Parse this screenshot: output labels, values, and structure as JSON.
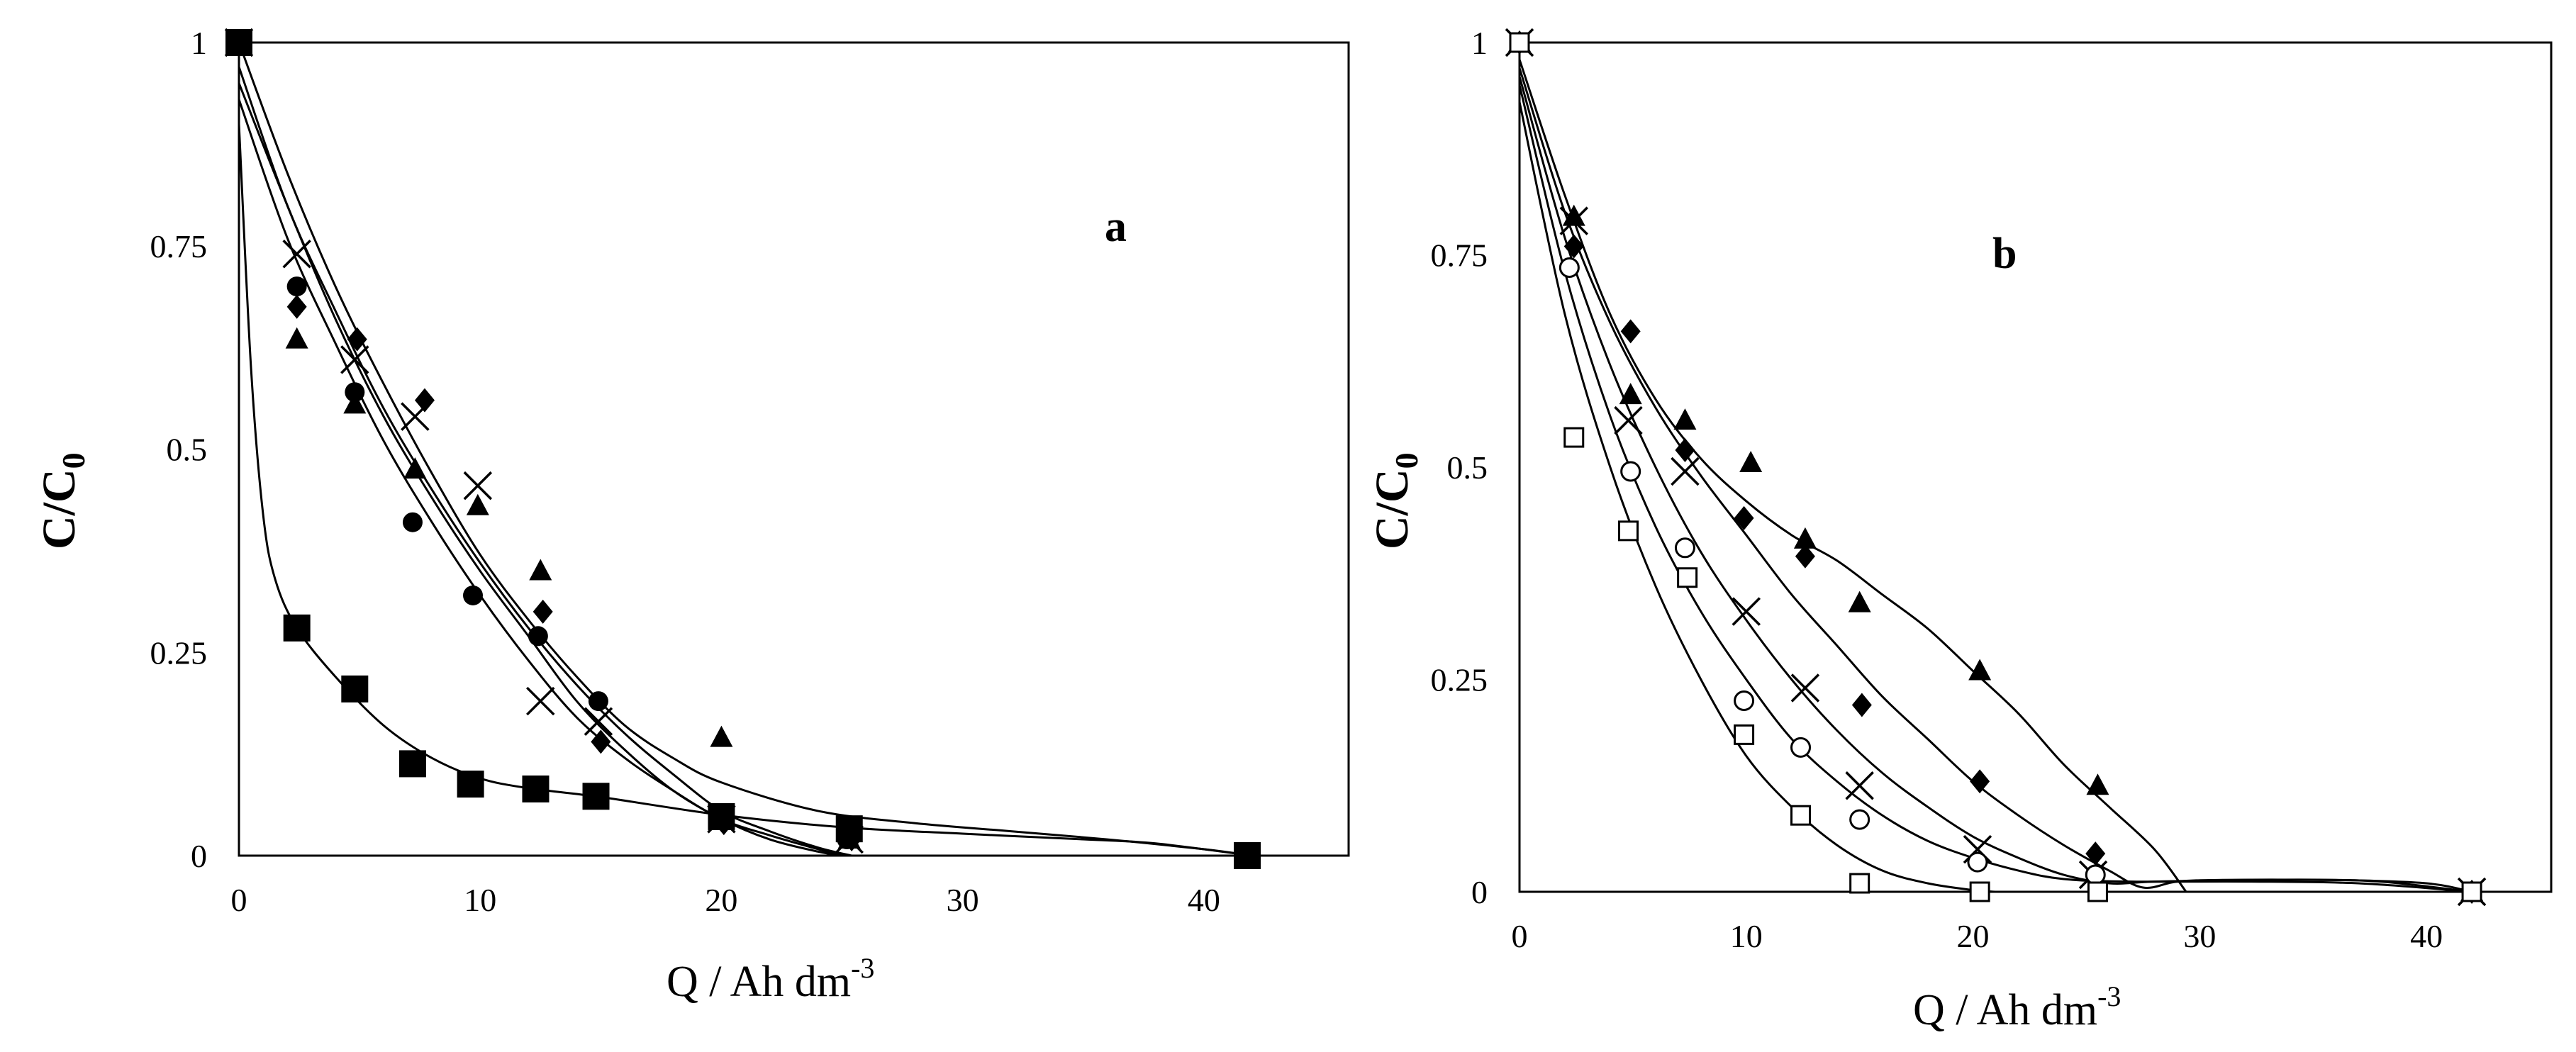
{
  "chart_data": [
    {
      "type": "scatter",
      "panel_label": "a",
      "xlabel": "Q / Ah dm",
      "xlabel_sup": "-3",
      "ylabel": "C/C",
      "ylabel_sub": "0",
      "xlim": [
        0,
        46
      ],
      "ylim": [
        0,
        1
      ],
      "xticks": [
        "0",
        "10",
        "20",
        "30",
        "40"
      ],
      "yticks": [
        "0",
        "0.25",
        "0.5",
        "0.75",
        "1"
      ],
      "series": [
        {
          "name": "filled square",
          "marker": "square-filled-large",
          "points": [
            [
              0,
              1
            ],
            [
              2.4,
              0.28
            ],
            [
              4.8,
              0.205
            ],
            [
              7.2,
              0.113
            ],
            [
              9.6,
              0.088
            ],
            [
              12.3,
              0.082
            ],
            [
              14.8,
              0.073
            ],
            [
              20,
              0.048
            ],
            [
              25.3,
              0.033
            ],
            [
              41.8,
              0
            ]
          ],
          "curve": [
            [
              0,
              0.9
            ],
            [
              0.5,
              0.6
            ],
            [
              1,
              0.42
            ],
            [
              1.5,
              0.34
            ],
            [
              2.4,
              0.28
            ],
            [
              4,
              0.22
            ],
            [
              6,
              0.16
            ],
            [
              8,
              0.12
            ],
            [
              10,
              0.095
            ],
            [
              12,
              0.083
            ],
            [
              15,
              0.072
            ],
            [
              20,
              0.05
            ],
            [
              25,
              0.035
            ],
            [
              30,
              0.027
            ],
            [
              35,
              0.02
            ],
            [
              38,
              0.015
            ],
            [
              42,
              0
            ]
          ]
        },
        {
          "name": "filled circle",
          "marker": "circle-filled",
          "points": [
            [
              0,
              1
            ],
            [
              2.4,
              0.7
            ],
            [
              4.8,
              0.57
            ],
            [
              7.2,
              0.41
            ],
            [
              9.7,
              0.32
            ],
            [
              12.4,
              0.27
            ],
            [
              14.9,
              0.19
            ],
            [
              20,
              0.045
            ],
            [
              25.2,
              0.02
            ]
          ],
          "curve": [
            [
              0,
              0.93
            ],
            [
              2,
              0.76
            ],
            [
              4,
              0.63
            ],
            [
              6,
              0.51
            ],
            [
              8,
              0.41
            ],
            [
              10,
              0.32
            ],
            [
              12,
              0.24
            ],
            [
              14,
              0.17
            ],
            [
              16,
              0.12
            ],
            [
              18,
              0.08
            ],
            [
              20,
              0.045
            ],
            [
              22,
              0.025
            ],
            [
              24,
              0.008
            ],
            [
              25,
              0
            ]
          ]
        },
        {
          "name": "filled triangle",
          "marker": "triangle-filled",
          "points": [
            [
              0,
              1
            ],
            [
              2.4,
              0.635
            ],
            [
              4.8,
              0.555
            ],
            [
              7.3,
              0.475
            ],
            [
              9.9,
              0.43
            ],
            [
              12.5,
              0.35
            ],
            [
              20,
              0.145
            ],
            [
              25.3,
              0.02
            ]
          ],
          "curve": [
            [
              0,
              1
            ],
            [
              2,
              0.84
            ],
            [
              4,
              0.7
            ],
            [
              6,
              0.58
            ],
            [
              8,
              0.47
            ],
            [
              10,
              0.37
            ],
            [
              12,
              0.29
            ],
            [
              14,
              0.22
            ],
            [
              16,
              0.16
            ],
            [
              18,
              0.12
            ],
            [
              20,
              0.09
            ],
            [
              24,
              0.055
            ],
            [
              28,
              0.04
            ],
            [
              32,
              0.03
            ],
            [
              36,
              0.02
            ],
            [
              40,
              0.008
            ],
            [
              42,
              0
            ]
          ]
        },
        {
          "name": "filled diamond",
          "marker": "diamond-filled",
          "points": [
            [
              0,
              1
            ],
            [
              2.4,
              0.675
            ],
            [
              4.9,
              0.635
            ],
            [
              7.7,
              0.56
            ],
            [
              12.6,
              0.3
            ],
            [
              15,
              0.14
            ],
            [
              20.1,
              0.04
            ],
            [
              25.4,
              0.02
            ]
          ],
          "curve": [
            [
              0,
              0.95
            ],
            [
              2,
              0.8
            ],
            [
              4,
              0.66
            ],
            [
              6,
              0.54
            ],
            [
              8,
              0.44
            ],
            [
              10,
              0.35
            ],
            [
              12,
              0.27
            ],
            [
              14,
              0.19
            ],
            [
              16,
              0.13
            ],
            [
              18,
              0.08
            ],
            [
              20,
              0.045
            ],
            [
              22,
              0.02
            ],
            [
              24,
              0.005
            ],
            [
              25,
              0
            ]
          ]
        },
        {
          "name": "cross",
          "marker": "x-cross",
          "points": [
            [
              0,
              1
            ],
            [
              2.4,
              0.74
            ],
            [
              4.8,
              0.61
            ],
            [
              7.3,
              0.54
            ],
            [
              9.9,
              0.455
            ],
            [
              12.5,
              0.19
            ],
            [
              14.9,
              0.165
            ],
            [
              20,
              0.045
            ],
            [
              25.3,
              0.02
            ]
          ],
          "curve": [
            [
              0,
              0.97
            ],
            [
              2,
              0.8
            ],
            [
              4,
              0.67
            ],
            [
              6,
              0.55
            ],
            [
              8,
              0.45
            ],
            [
              10,
              0.36
            ],
            [
              12,
              0.28
            ],
            [
              14,
              0.21
            ],
            [
              16,
              0.15
            ],
            [
              18,
              0.1
            ],
            [
              20,
              0.055
            ],
            [
              22,
              0.03
            ],
            [
              24,
              0.01
            ],
            [
              25.4,
              0
            ]
          ]
        }
      ]
    },
    {
      "type": "scatter",
      "panel_label": "b",
      "xlabel": "Q / Ah dm",
      "xlabel_sup": "-3",
      "ylabel": "C/C",
      "ylabel_sub": "0",
      "xlim": [
        0,
        45.5
      ],
      "ylim": [
        0,
        1
      ],
      "xticks": [
        "0",
        "10",
        "20",
        "30",
        "40"
      ],
      "yticks": [
        "0",
        "0.25",
        "0.5",
        "0.75",
        "1"
      ],
      "series": [
        {
          "name": "filled triangle",
          "marker": "triangle-filled",
          "points": [
            [
              0,
              1
            ],
            [
              2.4,
              0.795
            ],
            [
              4.9,
              0.585
            ],
            [
              7.3,
              0.555
            ],
            [
              10.2,
              0.505
            ],
            [
              12.6,
              0.415
            ],
            [
              15,
              0.34
            ],
            [
              20.3,
              0.26
            ],
            [
              25.5,
              0.125
            ],
            [
              42,
              0
            ]
          ],
          "curve": [
            [
              0,
              0.98
            ],
            [
              2,
              0.82
            ],
            [
              4,
              0.68
            ],
            [
              6,
              0.58
            ],
            [
              8,
              0.51
            ],
            [
              10,
              0.46
            ],
            [
              12,
              0.42
            ],
            [
              14,
              0.39
            ],
            [
              16,
              0.35
            ],
            [
              18,
              0.31
            ],
            [
              20,
              0.26
            ],
            [
              22,
              0.21
            ],
            [
              24,
              0.15
            ],
            [
              26,
              0.1
            ],
            [
              28,
              0.05
            ],
            [
              29.4,
              0
            ]
          ]
        },
        {
          "name": "filled diamond",
          "marker": "diamond-filled",
          "points": [
            [
              0,
              1
            ],
            [
              2.4,
              0.76
            ],
            [
              4.9,
              0.66
            ],
            [
              7.3,
              0.52
            ],
            [
              9.9,
              0.44
            ],
            [
              12.6,
              0.395
            ],
            [
              15.1,
              0.22
            ],
            [
              20.3,
              0.13
            ],
            [
              25.4,
              0.045
            ],
            [
              42,
              0
            ]
          ],
          "curve": [
            [
              0,
              0.97
            ],
            [
              2,
              0.8
            ],
            [
              4,
              0.67
            ],
            [
              6,
              0.57
            ],
            [
              8,
              0.49
            ],
            [
              10,
              0.42
            ],
            [
              12,
              0.35
            ],
            [
              14,
              0.29
            ],
            [
              16,
              0.23
            ],
            [
              18,
              0.18
            ],
            [
              20,
              0.13
            ],
            [
              22,
              0.09
            ],
            [
              24,
              0.055
            ],
            [
              26,
              0.025
            ],
            [
              27.5,
              0.005
            ],
            [
              29,
              0.012
            ],
            [
              31,
              0.014
            ],
            [
              35,
              0.014
            ],
            [
              38,
              0.012
            ],
            [
              42,
              0
            ]
          ]
        },
        {
          "name": "cross",
          "marker": "x-cross",
          "points": [
            [
              0,
              1
            ],
            [
              2.4,
              0.79
            ],
            [
              4.8,
              0.555
            ],
            [
              7.3,
              0.495
            ],
            [
              10,
              0.33
            ],
            [
              12.6,
              0.24
            ],
            [
              15,
              0.125
            ],
            [
              20.2,
              0.05
            ],
            [
              25.3,
              0.02
            ],
            [
              42,
              0
            ]
          ],
          "curve": [
            [
              0,
              0.96
            ],
            [
              2,
              0.77
            ],
            [
              4,
              0.62
            ],
            [
              6,
              0.5
            ],
            [
              8,
              0.4
            ],
            [
              10,
              0.32
            ],
            [
              12,
              0.25
            ],
            [
              14,
              0.19
            ],
            [
              16,
              0.14
            ],
            [
              18,
              0.1
            ],
            [
              20,
              0.065
            ],
            [
              22,
              0.04
            ],
            [
              24,
              0.02
            ],
            [
              26,
              0.01
            ],
            [
              28,
              0.012
            ],
            [
              32,
              0.014
            ],
            [
              36,
              0.014
            ],
            [
              40,
              0.01
            ],
            [
              42,
              0
            ]
          ]
        },
        {
          "name": "open circle",
          "marker": "circle-open",
          "points": [
            [
              0,
              1
            ],
            [
              2.2,
              0.735
            ],
            [
              4.9,
              0.495
            ],
            [
              7.3,
              0.405
            ],
            [
              9.9,
              0.225
            ],
            [
              12.4,
              0.17
            ],
            [
              15,
              0.085
            ],
            [
              20.2,
              0.035
            ],
            [
              25.4,
              0.02
            ],
            [
              42,
              0
            ]
          ],
          "curve": [
            [
              0,
              0.95
            ],
            [
              2,
              0.73
            ],
            [
              4,
              0.56
            ],
            [
              6,
              0.43
            ],
            [
              8,
              0.33
            ],
            [
              10,
              0.25
            ],
            [
              12,
              0.18
            ],
            [
              14,
              0.13
            ],
            [
              16,
              0.09
            ],
            [
              18,
              0.06
            ],
            [
              20,
              0.04
            ],
            [
              22,
              0.025
            ],
            [
              24,
              0.015
            ],
            [
              27,
              0.012
            ],
            [
              32,
              0.012
            ],
            [
              37,
              0.01
            ],
            [
              42,
              0
            ]
          ]
        },
        {
          "name": "open square",
          "marker": "square-open",
          "points": [
            [
              0,
              1
            ],
            [
              2.4,
              0.535
            ],
            [
              4.8,
              0.425
            ],
            [
              7.4,
              0.37
            ],
            [
              9.9,
              0.185
            ],
            [
              12.4,
              0.09
            ],
            [
              15,
              0.01
            ],
            [
              20.3,
              0
            ],
            [
              25.5,
              0
            ],
            [
              42,
              0
            ]
          ],
          "curve": [
            [
              0,
              0.93
            ],
            [
              2,
              0.68
            ],
            [
              4,
              0.5
            ],
            [
              6,
              0.36
            ],
            [
              8,
              0.25
            ],
            [
              10,
              0.16
            ],
            [
              12,
              0.1
            ],
            [
              14,
              0.055
            ],
            [
              16,
              0.025
            ],
            [
              18,
              0.01
            ],
            [
              20,
              0.002
            ],
            [
              21,
              0
            ]
          ]
        }
      ]
    }
  ]
}
